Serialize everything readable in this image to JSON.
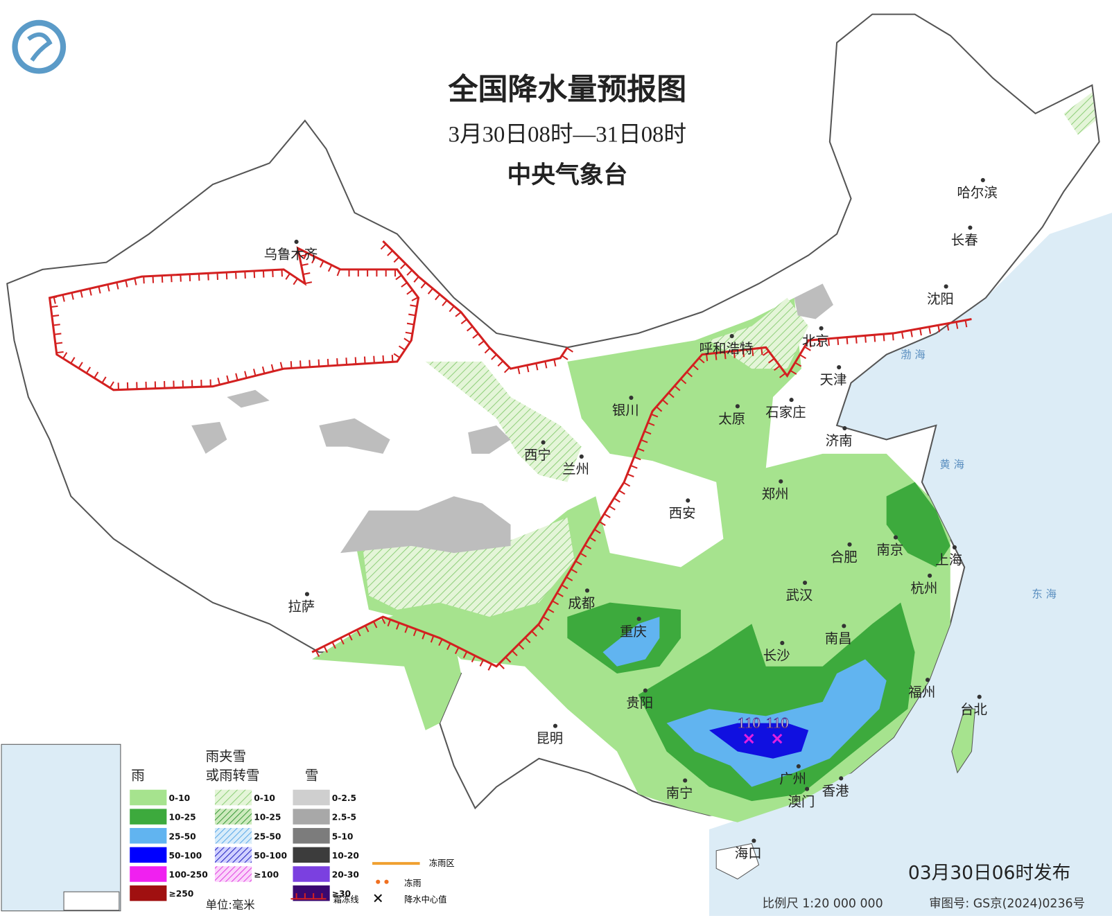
{
  "header": {
    "title": "全国降水量预报图",
    "period": "3月30日08时—31日08时",
    "issuer": "中央气象台"
  },
  "cities": [
    "乌鲁木齐",
    "哈尔滨",
    "长春",
    "沈阳",
    "北京",
    "天津",
    "呼和浩特",
    "石家庄",
    "太原",
    "济南",
    "银川",
    "西宁",
    "兰州",
    "西安",
    "郑州",
    "合肥",
    "南京",
    "上海",
    "杭州",
    "武汉",
    "成都",
    "重庆",
    "拉萨",
    "长沙",
    "南昌",
    "贵阳",
    "福州",
    "台北",
    "昆明",
    "南宁",
    "广州",
    "澳门",
    "香港",
    "海口"
  ],
  "seas": [
    "黄  海",
    "东  海",
    "渤  海"
  ],
  "precip_centers": [
    110,
    110
  ],
  "legend": {
    "rain": {
      "title": "雨",
      "items": [
        "0-10",
        "10-25",
        "25-50",
        "50-100",
        "100-250",
        "≥250"
      ]
    },
    "mix": {
      "title": [
        "雨夹雪",
        "或雨转雪"
      ],
      "items": [
        "0-10",
        "10-25",
        "25-50",
        "50-100",
        "≥100"
      ]
    },
    "snow": {
      "title": "雪",
      "items": [
        "0-2.5",
        "2.5-5",
        "5-10",
        "10-20",
        "20-30",
        "≥30"
      ]
    },
    "unit": "单位:毫米",
    "freezing_area": "冻雨区",
    "freezing_rain": "冻雨",
    "frost_line": "霜冻线",
    "center": "降水中心值"
  },
  "footer": {
    "issued": "03月30日06时发布",
    "scale": "比例尺  1:20 000 000",
    "approval": "审图号: GS京(2024)0236号"
  }
}
